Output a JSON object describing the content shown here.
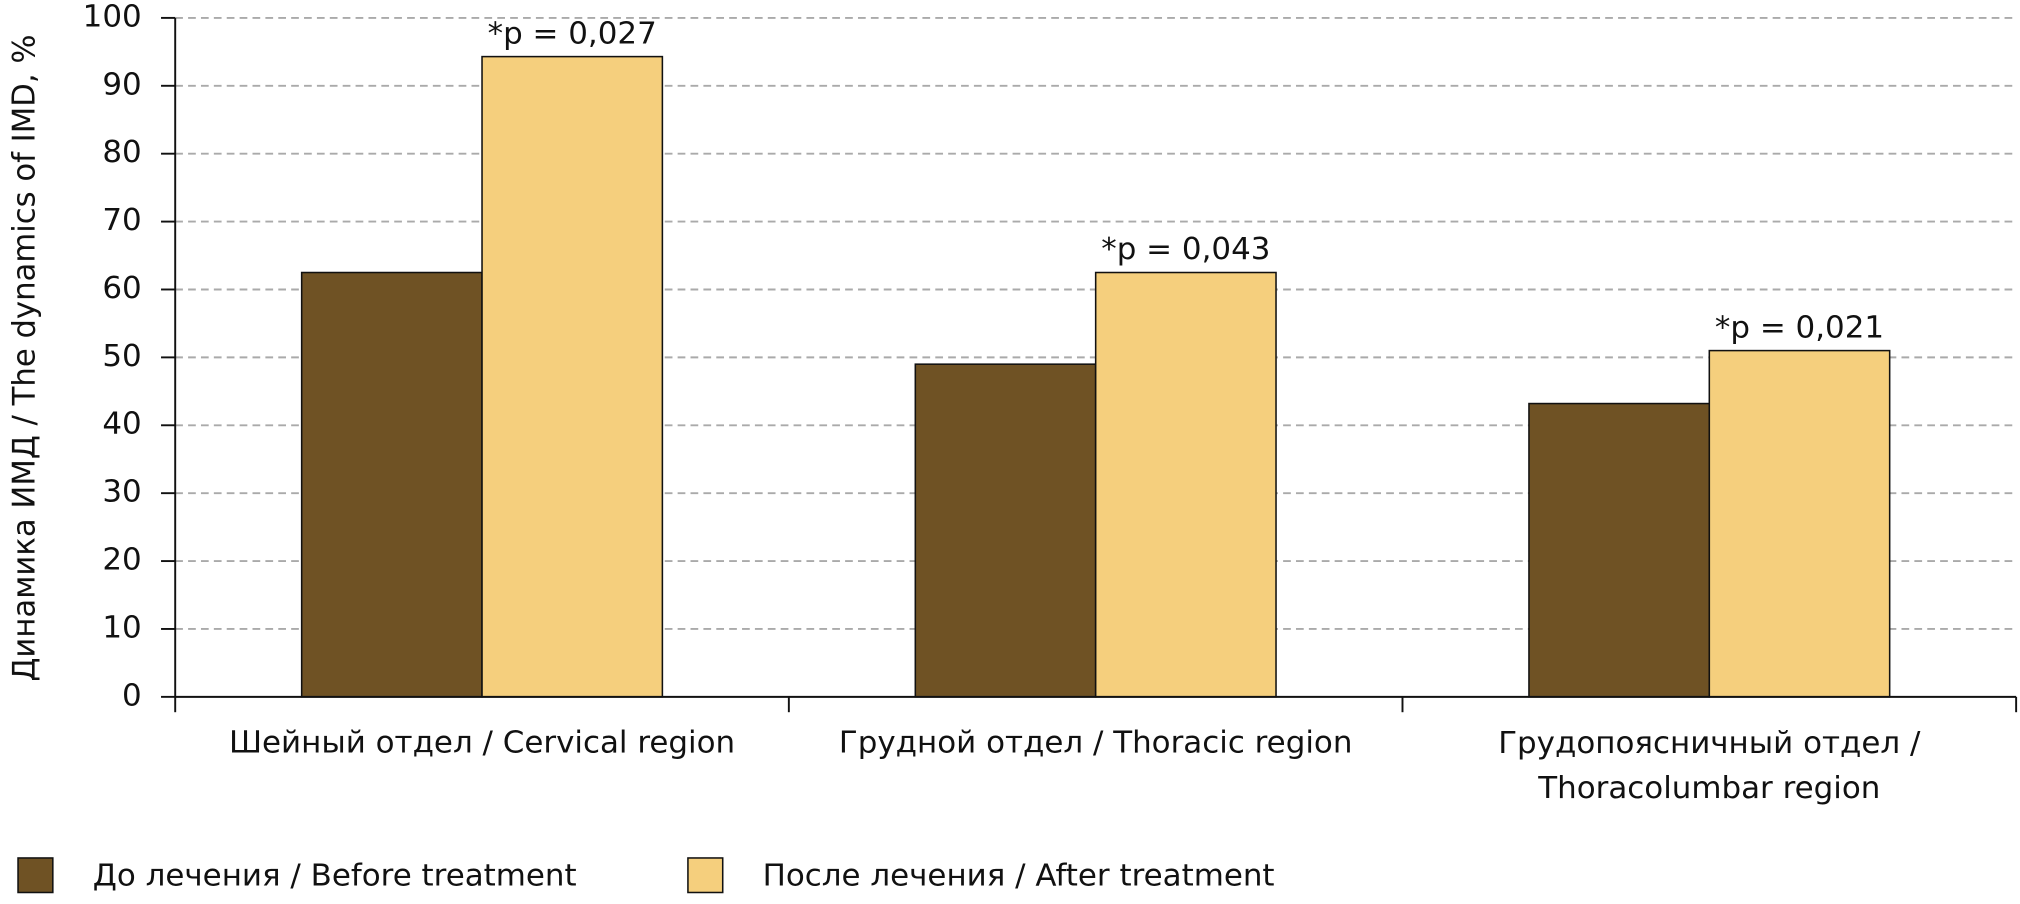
{
  "chart_data": {
    "type": "bar",
    "y_label": "Динамика ИМД / The dynamics of IMD, %",
    "categories": [
      "Шейный отдел / Cervical region",
      "Грудной отдел / Thoracic region",
      "Грудопоясничный отдел / Thoracolumbar region"
    ],
    "series": [
      {
        "name": "До лечения / Before treatment",
        "color": "#6f5224",
        "values": [
          62.5,
          49,
          43.2
        ]
      },
      {
        "name": "После лечения / After treatment",
        "color": "#f5cf7d",
        "values": [
          94.3,
          62.5,
          51
        ]
      }
    ],
    "annotations": [
      "*p = 0,027",
      "*p = 0,043",
      "*p = 0,021"
    ],
    "ylim": [
      0,
      100
    ],
    "yticks": [
      0,
      10,
      20,
      30,
      40,
      50,
      60,
      70,
      80,
      90,
      100
    ],
    "grid": true,
    "legend": "bottom"
  }
}
